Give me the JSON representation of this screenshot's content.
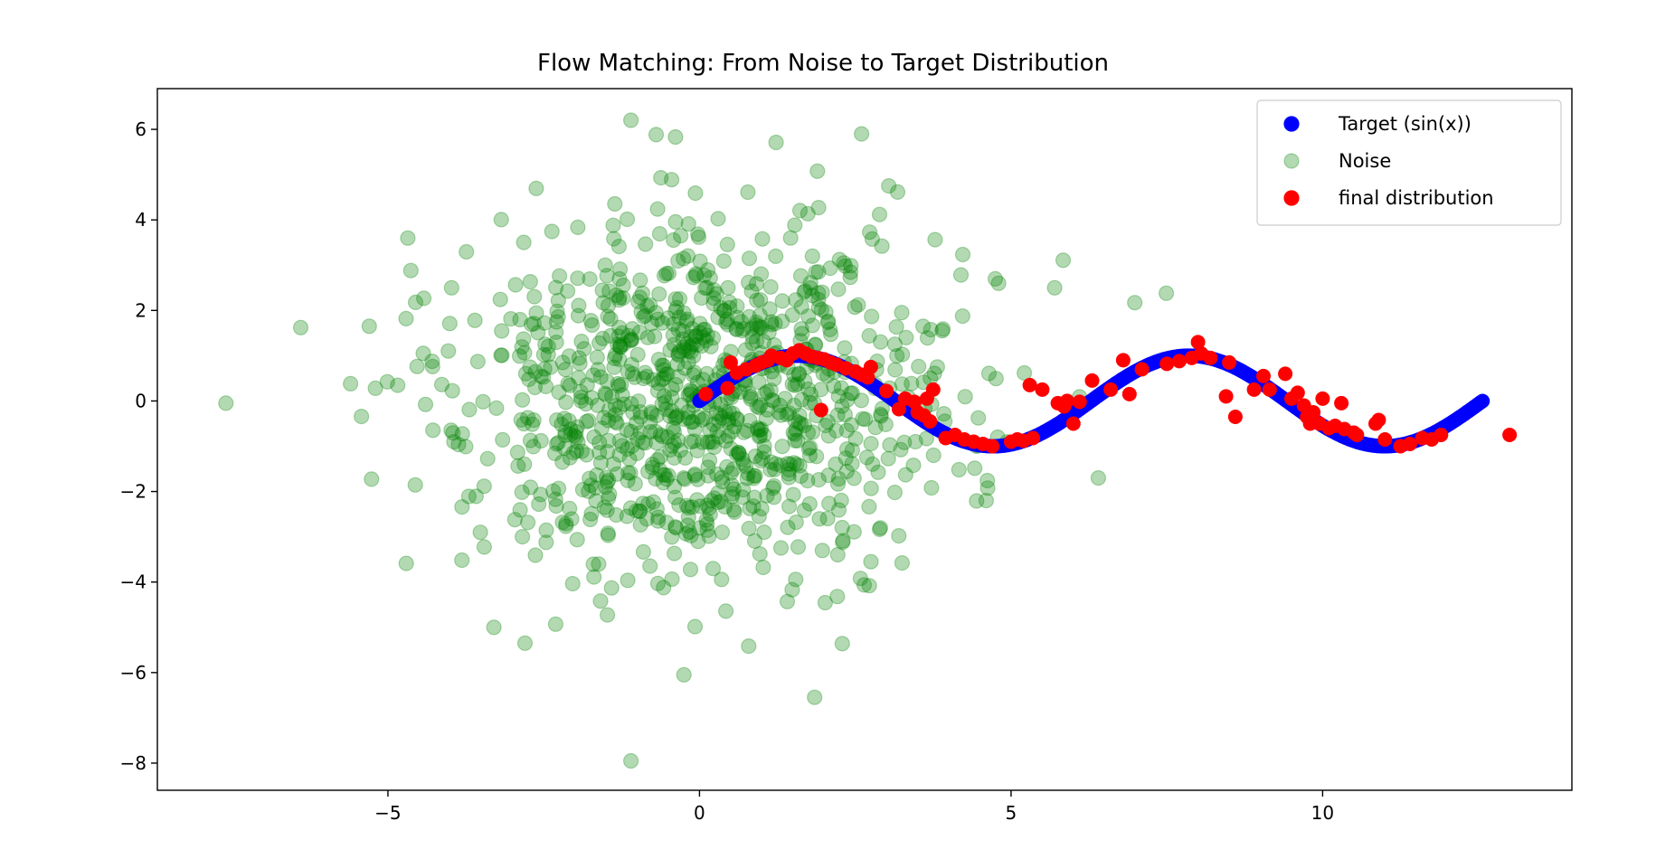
{
  "chart_data": {
    "type": "scatter",
    "title": "Flow Matching: From Noise to Target Distribution",
    "xlabel": "",
    "ylabel": "",
    "xlim": [
      -8.7,
      14.0
    ],
    "ylim": [
      -8.6,
      6.9
    ],
    "x_ticks": [
      -5,
      0,
      5,
      10
    ],
    "x_tick_labels": [
      "−5",
      "0",
      "5",
      "10"
    ],
    "y_ticks": [
      -8,
      -6,
      -4,
      -2,
      0,
      2,
      4,
      6
    ],
    "y_tick_labels": [
      "−8",
      "−6",
      "−4",
      "−2",
      "0",
      "2",
      "4",
      "6"
    ],
    "grid": false,
    "legend_position": "top-right",
    "series": [
      {
        "name": "Target (sin(x))",
        "color": "#0000ff",
        "opacity": 1.0,
        "kind": "curve",
        "function": "sin",
        "x_range": [
          0,
          12.566
        ],
        "points": 500
      },
      {
        "name": "Noise",
        "color": "#008000",
        "opacity": 0.3,
        "kind": "random_gaussian",
        "count": 1000,
        "mean": [
          0,
          0
        ],
        "std": [
          2,
          2
        ],
        "seed": 42,
        "notable_points": [
          [
            -7.6,
            -0.05
          ],
          [
            -6.4,
            1.62
          ],
          [
            -5.6,
            0.38
          ],
          [
            -5.3,
            1.65
          ],
          [
            -5.2,
            0.28
          ],
          [
            -1.1,
            6.2
          ],
          [
            -1.1,
            -7.95
          ],
          [
            -0.25,
            -6.05
          ],
          [
            2.6,
            5.9
          ],
          [
            5.7,
            2.5
          ],
          [
            4.8,
            2.6
          ],
          [
            6.4,
            -1.7
          ],
          [
            4.6,
            -2.2
          ],
          [
            -3.3,
            -5.0
          ],
          [
            -2.8,
            -5.35
          ]
        ]
      },
      {
        "name": "final distribution",
        "color": "#ff0000",
        "opacity": 1.0,
        "kind": "points",
        "points": [
          [
            0.1,
            0.15
          ],
          [
            0.45,
            0.28
          ],
          [
            0.5,
            0.85
          ],
          [
            0.6,
            0.62
          ],
          [
            0.75,
            0.7
          ],
          [
            0.9,
            0.78
          ],
          [
            1.0,
            0.85
          ],
          [
            1.1,
            0.9
          ],
          [
            1.15,
            1.0
          ],
          [
            1.3,
            0.95
          ],
          [
            1.4,
            0.9
          ],
          [
            1.5,
            1.05
          ],
          [
            1.6,
            1.12
          ],
          [
            1.7,
            1.05
          ],
          [
            1.8,
            0.98
          ],
          [
            1.9,
            0.95
          ],
          [
            2.0,
            0.92
          ],
          [
            2.1,
            0.85
          ],
          [
            2.2,
            0.8
          ],
          [
            2.35,
            0.72
          ],
          [
            2.5,
            0.65
          ],
          [
            2.6,
            0.58
          ],
          [
            2.7,
            0.52
          ],
          [
            2.75,
            0.75
          ],
          [
            1.95,
            -0.2
          ],
          [
            3.0,
            0.22
          ],
          [
            3.2,
            -0.18
          ],
          [
            3.3,
            0.05
          ],
          [
            3.45,
            -0.02
          ],
          [
            3.5,
            -0.25
          ],
          [
            3.6,
            -0.32
          ],
          [
            3.65,
            0.05
          ],
          [
            3.75,
            0.25
          ],
          [
            3.7,
            -0.45
          ],
          [
            3.95,
            -0.82
          ],
          [
            4.1,
            -0.75
          ],
          [
            4.25,
            -0.85
          ],
          [
            4.4,
            -0.9
          ],
          [
            4.55,
            -0.95
          ],
          [
            4.7,
            -1.0
          ],
          [
            5.0,
            -0.9
          ],
          [
            5.1,
            -0.85
          ],
          [
            5.2,
            -0.88
          ],
          [
            5.35,
            -0.82
          ],
          [
            5.3,
            0.35
          ],
          [
            5.5,
            0.25
          ],
          [
            5.75,
            -0.05
          ],
          [
            5.85,
            -0.12
          ],
          [
            5.9,
            0.0
          ],
          [
            6.0,
            -0.5
          ],
          [
            6.1,
            -0.02
          ],
          [
            6.3,
            0.45
          ],
          [
            6.6,
            0.25
          ],
          [
            6.8,
            0.9
          ],
          [
            6.9,
            0.15
          ],
          [
            7.1,
            0.7
          ],
          [
            7.5,
            0.82
          ],
          [
            7.7,
            0.88
          ],
          [
            7.9,
            0.95
          ],
          [
            8.0,
            1.3
          ],
          [
            8.05,
            1.05
          ],
          [
            8.2,
            0.95
          ],
          [
            8.45,
            0.1
          ],
          [
            8.5,
            0.85
          ],
          [
            8.6,
            -0.35
          ],
          [
            8.9,
            0.25
          ],
          [
            9.05,
            0.55
          ],
          [
            9.15,
            0.25
          ],
          [
            9.4,
            0.6
          ],
          [
            9.5,
            0.05
          ],
          [
            9.6,
            0.18
          ],
          [
            9.7,
            -0.1
          ],
          [
            9.75,
            -0.35
          ],
          [
            9.8,
            -0.5
          ],
          [
            9.85,
            -0.25
          ],
          [
            9.95,
            -0.5
          ],
          [
            10.0,
            0.05
          ],
          [
            10.1,
            -0.6
          ],
          [
            10.2,
            -0.55
          ],
          [
            10.3,
            -0.05
          ],
          [
            10.35,
            -0.62
          ],
          [
            10.5,
            -0.7
          ],
          [
            10.55,
            -0.75
          ],
          [
            10.85,
            -0.5
          ],
          [
            10.9,
            -0.42
          ],
          [
            11.0,
            -0.85
          ],
          [
            11.25,
            -1.0
          ],
          [
            11.4,
            -0.95
          ],
          [
            11.6,
            -0.82
          ],
          [
            11.75,
            -0.85
          ],
          [
            11.9,
            -0.75
          ],
          [
            13.0,
            -0.75
          ]
        ]
      }
    ]
  }
}
